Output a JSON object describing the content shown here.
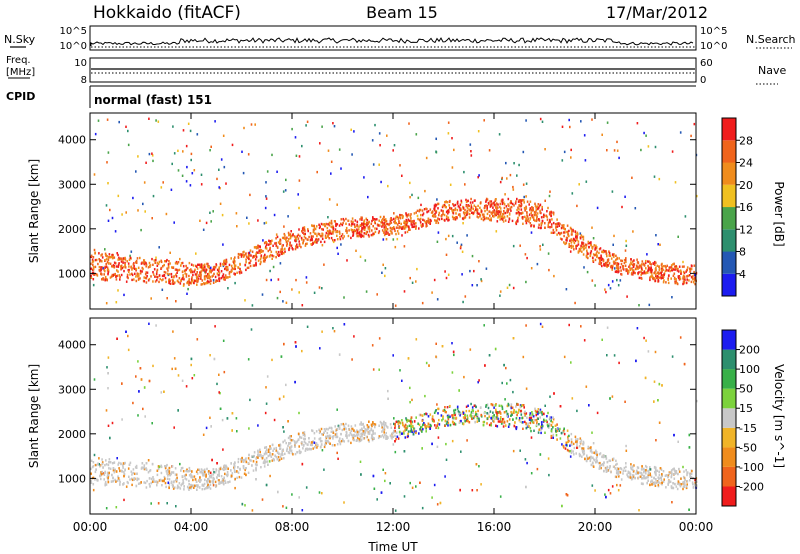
{
  "header": {
    "station": "Hokkaido (fitACF)",
    "beam": "Beam 15",
    "date": "17/Mar/2012"
  },
  "top_panels": {
    "nsky": {
      "label": "N.Sky",
      "right_label": "N.Search",
      "tick_top": "10^5",
      "tick_bottom": "10^0",
      "right_tick_top": "10^5",
      "right_tick_bottom": "10^0"
    },
    "freq": {
      "label_line1": "Freq.",
      "label_line2": "[MHz]",
      "right_label": "Nave",
      "tick_top": "10",
      "tick_bottom": "8",
      "right_tick_top": "60",
      "right_tick_bottom": "0"
    },
    "cpid": {
      "label": "CPID",
      "value": "normal (fast) 151"
    }
  },
  "colors": {
    "power_scale": [
      "#1c1cf0",
      "#2458b4",
      "#2d8f6e",
      "#4aa44a",
      "#f0c020",
      "#f08c1c",
      "#f0641c",
      "#f01c1c"
    ],
    "velocity_scale": [
      "#f01c1c",
      "#f0641c",
      "#f08c1c",
      "#f0b428",
      "#c8c8c8",
      "#7cd23c",
      "#38b048",
      "#2d8f6e",
      "#1c1cf0"
    ],
    "ground_scatter": "#c8c8c8"
  },
  "chart_data": [
    {
      "type": "heatmap",
      "name": "power",
      "ylabel": "Slant Range [km]",
      "yticks": [
        "1000",
        "2000",
        "3000",
        "4000"
      ],
      "ylim": [
        200,
        4600
      ],
      "xlim": [
        "00:00",
        "24:00"
      ],
      "colorbar": {
        "label": "Power [dB]",
        "ticks": [
          "4",
          "8",
          "12",
          "16",
          "20",
          "24",
          "28"
        ],
        "range": [
          0,
          32
        ]
      },
      "bands": [
        {
          "note": "main scatter band",
          "start_range_km": [
            1250,
            1200,
            1150,
            1080,
            1000,
            1000,
            1250,
            1500,
            1750,
            1900,
            2000,
            2050,
            2050,
            2200,
            2400,
            2450,
            2450,
            2450,
            2300,
            1800,
            1400,
            1150,
            1050,
            1000,
            950
          ],
          "end_range_km": [
            900,
            850,
            820,
            800,
            760,
            800,
            1050,
            1300,
            1550,
            1700,
            1800,
            1850,
            1900,
            2000,
            2200,
            2250,
            2200,
            2150,
            2000,
            1600,
            1250,
            1000,
            880,
            800,
            750
          ]
        }
      ]
    },
    {
      "type": "heatmap",
      "name": "velocity",
      "ylabel": "Slant Range [km]",
      "yticks": [
        "1000",
        "2000",
        "3000",
        "4000"
      ],
      "ylim": [
        200,
        4600
      ],
      "xlabel": "Time UT",
      "xticks": [
        "00:00",
        "04:00",
        "08:00",
        "12:00",
        "16:00",
        "20:00",
        "00:00"
      ],
      "colorbar": {
        "label": "Velocity [m s^-1]",
        "ticks": [
          "-200",
          "-100",
          "-50",
          "-15",
          "15",
          "50",
          "100",
          "200"
        ],
        "range": [
          -250,
          250
        ]
      }
    }
  ]
}
